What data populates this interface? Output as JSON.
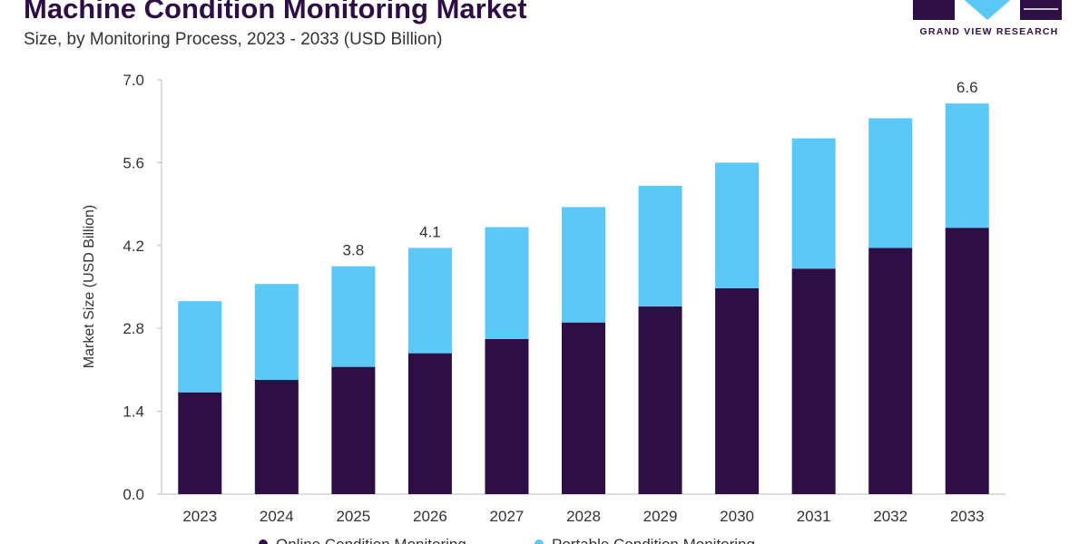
{
  "header": {
    "title": "Machine Condition Monitoring Market",
    "subtitle": "Size, by Monitoring Process, 2023 - 2033 (USD Billion)"
  },
  "logo": {
    "text": "GRAND VIEW RESEARCH",
    "color": "#2d0f45",
    "accent": "#5bc8f5"
  },
  "chart_data": {
    "type": "bar",
    "stacked": true,
    "categories": [
      "2023",
      "2024",
      "2025",
      "2026",
      "2027",
      "2028",
      "2029",
      "2030",
      "2031",
      "2032",
      "2033"
    ],
    "series": [
      {
        "name": "Online Condition Monitoring",
        "color": "#2d0f45",
        "values": [
          1.72,
          1.93,
          2.15,
          2.38,
          2.62,
          2.9,
          3.17,
          3.48,
          3.81,
          4.16,
          4.5
        ]
      },
      {
        "name": "Portable Condition Monitoring",
        "color": "#5bc8f5",
        "values": [
          1.54,
          1.62,
          1.7,
          1.78,
          1.89,
          1.95,
          2.04,
          2.12,
          2.2,
          2.19,
          2.1
        ]
      }
    ],
    "total_labels": {
      "2025": "3.8",
      "2026": "4.1",
      "2033": "6.6"
    },
    "ylabel": "Market Size (USD Billion)",
    "xlabel": "",
    "ylim": [
      0,
      7.0
    ],
    "yticks": [
      "0.0",
      "1.4",
      "2.8",
      "4.2",
      "5.6",
      "7.0"
    ],
    "grid": false,
    "legend_position": "bottom"
  }
}
